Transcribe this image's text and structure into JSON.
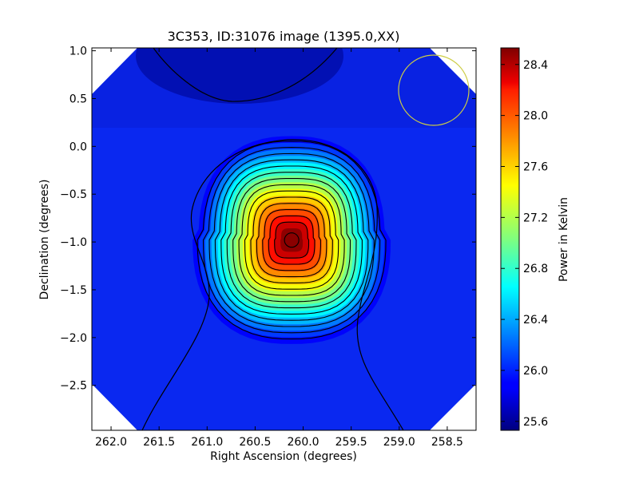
{
  "chart_data": {
    "type": "heatmap",
    "title": "3C353, ID:31076 image (1395.0,XX)",
    "xlabel": "Right Ascension (degrees)",
    "ylabel": "Declination (degrees)",
    "xlim": [
      262.2,
      258.2
    ],
    "ylim": [
      -2.97,
      1.03
    ],
    "x_ticks": [
      262.0,
      261.5,
      261.0,
      260.5,
      260.0,
      259.5,
      259.0,
      258.5
    ],
    "x_tick_labels": [
      "262.0",
      "261.5",
      "261.0",
      "260.5",
      "260.0",
      "259.5",
      "259.0",
      "258.5"
    ],
    "y_ticks": [
      1.0,
      0.5,
      0.0,
      -0.5,
      -1.0,
      -1.5,
      -2.0,
      -2.5
    ],
    "y_tick_labels": [
      "1.0",
      "0.5",
      "0.0",
      "−0.5",
      "−1.0",
      "−1.5",
      "−2.0",
      "−2.5"
    ],
    "source": {
      "ra": 260.12,
      "dec": -0.98,
      "peak": 28.5
    },
    "background_level": 25.9,
    "beam_circle": {
      "ra": 258.45,
      "dec": 0.57,
      "radius_deg": 0.36,
      "color": "#cccc44"
    },
    "contour_count": 14,
    "colorbar": {
      "label": "Power in Kelvin",
      "min": 25.53,
      "max": 28.53,
      "ticks": [
        28.4,
        28.0,
        27.6,
        27.2,
        26.8,
        26.4,
        26.0,
        25.6
      ],
      "tick_labels": [
        "28.4",
        "28.0",
        "27.6",
        "27.2",
        "26.8",
        "26.4",
        "26.0",
        "25.6"
      ],
      "colormap": "jet"
    }
  }
}
